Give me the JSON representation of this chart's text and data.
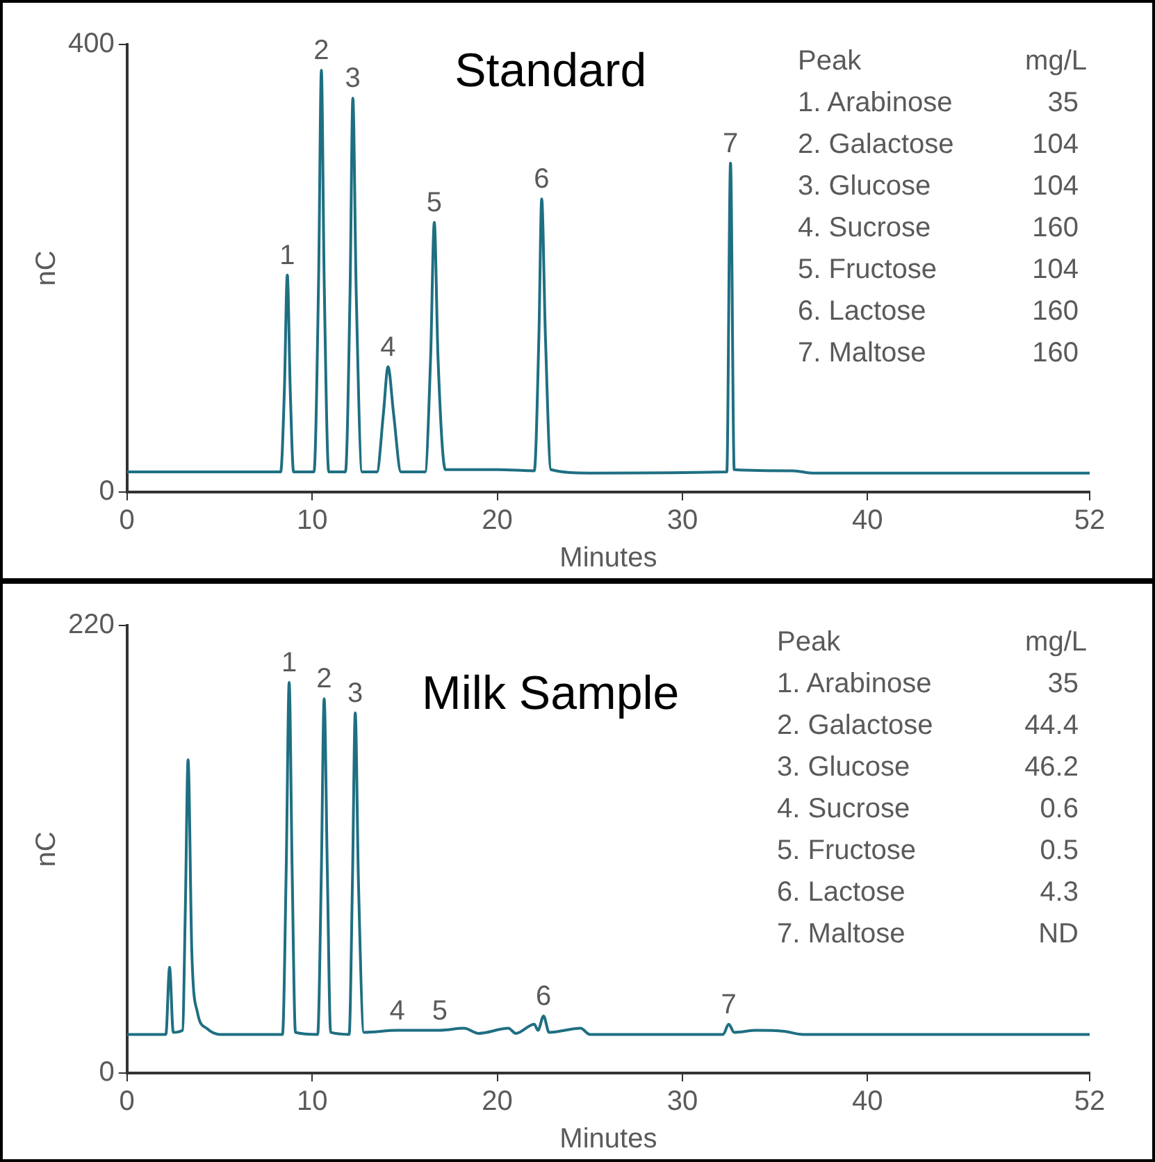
{
  "chart_data": [
    {
      "type": "line",
      "title": "Standard",
      "xlabel": "Minutes",
      "ylabel": "nC",
      "xlim": [
        0,
        52
      ],
      "xticks": [
        0,
        10,
        20,
        30,
        40,
        52
      ],
      "ylim": [
        0,
        400
      ],
      "yticks": [
        0,
        400
      ],
      "grid": false,
      "legend": false,
      "marker": "none",
      "line_style": "solid",
      "series": [
        {
          "color": "#1f6f82",
          "x": [
            0,
            8.3,
            8.5,
            8.66,
            8.82,
            9.0,
            10.1,
            10.35,
            10.5,
            10.65,
            10.9,
            11.8,
            12.05,
            12.2,
            12.38,
            12.7,
            13.5,
            13.85,
            14.1,
            14.4,
            14.8,
            16.1,
            16.4,
            16.6,
            16.8,
            17.2,
            20,
            22.0,
            22.25,
            22.4,
            22.6,
            22.9,
            25,
            32.4,
            32.6,
            32.8,
            36,
            37,
            52
          ],
          "values": [
            18,
            18,
            90,
            194,
            90,
            18,
            18,
            190,
            377,
            190,
            18,
            18,
            180,
            352,
            180,
            18,
            18,
            70,
            112,
            70,
            18,
            18,
            120,
            241,
            120,
            20,
            20,
            19,
            140,
            262,
            140,
            20,
            17,
            18,
            294,
            20,
            19,
            17,
            17
          ]
        }
      ],
      "annotations": [
        {
          "text": "1",
          "x": 8.66,
          "y": 194
        },
        {
          "text": "2",
          "x": 10.5,
          "y": 377
        },
        {
          "text": "3",
          "x": 12.2,
          "y": 352
        },
        {
          "text": "4",
          "x": 14.1,
          "y": 112
        },
        {
          "text": "5",
          "x": 16.6,
          "y": 241
        },
        {
          "text": "6",
          "x": 22.4,
          "y": 262
        },
        {
          "text": "7",
          "x": 32.6,
          "y": 294
        },
        "Peak",
        "mg/L",
        "1. Arabinose",
        "35",
        "2. Galactose",
        "104",
        "3. Glucose",
        "104",
        "4. Sucrose",
        "160",
        "5. Fructose",
        "104",
        "6. Lactose",
        "160",
        "7. Maltose",
        "160"
      ]
    },
    {
      "type": "line",
      "title": "Milk Sample",
      "xlabel": "Minutes",
      "ylabel": "nC",
      "xlim": [
        0,
        52
      ],
      "xticks": [
        0,
        10,
        20,
        30,
        40,
        52
      ],
      "ylim": [
        0,
        220
      ],
      "yticks": [
        0,
        220
      ],
      "grid": false,
      "legend": false,
      "marker": "none",
      "line_style": "solid",
      "series": [
        {
          "color": "#1f6f82",
          "x": [
            0,
            2.1,
            2.3,
            2.5,
            3.0,
            3.15,
            3.3,
            3.5,
            3.8,
            4.3,
            5,
            8.4,
            8.6,
            8.76,
            8.92,
            9.1,
            10.3,
            10.5,
            10.65,
            10.82,
            11.0,
            12.0,
            12.18,
            12.33,
            12.5,
            12.8,
            14.6,
            16.9,
            18.2,
            19,
            20.6,
            21,
            22,
            22.2,
            22.5,
            22.8,
            24.5,
            25,
            32.2,
            32.5,
            32.8,
            34,
            35.5,
            36.5,
            52
          ],
          "values": [
            19,
            19,
            52,
            20,
            21,
            80,
            154,
            60,
            30,
            22,
            19,
            19,
            100,
            192,
            100,
            20,
            19,
            100,
            184,
            100,
            20,
            19,
            95,
            177,
            95,
            20,
            21,
            21,
            22,
            19.5,
            22,
            19.5,
            24,
            21,
            28,
            20,
            22,
            19,
            19,
            24,
            20,
            21,
            20.5,
            19,
            19
          ]
        }
      ],
      "annotations": [
        {
          "text": "1",
          "x": 8.76,
          "y": 192
        },
        {
          "text": "2",
          "x": 10.65,
          "y": 184
        },
        {
          "text": "3",
          "x": 12.33,
          "y": 177
        },
        {
          "text": "4",
          "x": 14.6,
          "y": 21
        },
        {
          "text": "5",
          "x": 16.9,
          "y": 21
        },
        {
          "text": "6",
          "x": 22.5,
          "y": 28
        },
        {
          "text": "7",
          "x": 32.5,
          "y": 24
        },
        "Peak",
        "mg/L",
        "1. Arabinose",
        "35",
        "2. Galactose",
        "44.4",
        "3. Glucose",
        "46.2",
        "4. Sucrose",
        "0.6",
        "5. Fructose",
        "0.5",
        "6. Lactose",
        "4.3",
        "7. Maltose",
        "ND"
      ]
    }
  ]
}
